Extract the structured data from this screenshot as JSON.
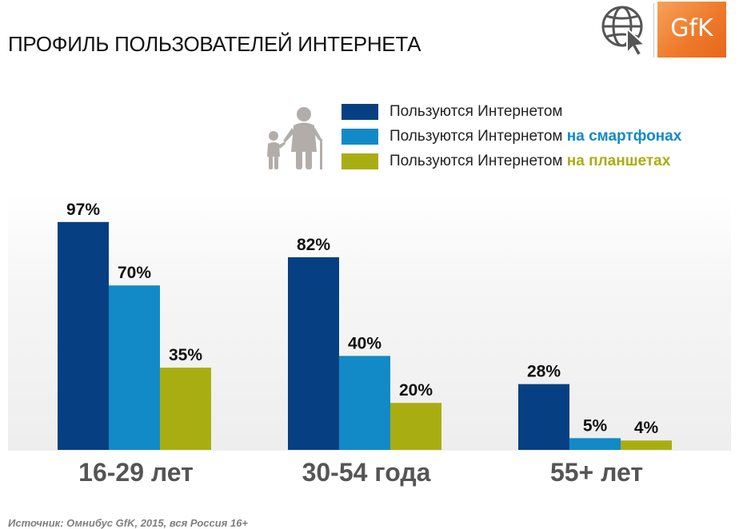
{
  "page": {
    "title": "ПРОФИЛЬ ПОЛЬЗОВАТЕЛЕЙ ИНТЕРНЕТА",
    "source": "Источник: Омнибус GfK, 2015, вся Россия 16+",
    "logo_text": "GfK",
    "icons": {
      "brand": "globe-cursor-icon",
      "people": "grandmother-child-icon"
    }
  },
  "legend": {
    "items": [
      {
        "text": "Пользуются Интернетом",
        "highlight": "",
        "color": "#063f82",
        "highlight_color": ""
      },
      {
        "text": "Пользуются Интернетом ",
        "highlight": "на смартфонах",
        "color": "#128ac8",
        "highlight_color": "#128ac8"
      },
      {
        "text": "Пользуются Интернетом ",
        "highlight": "на планшетах",
        "color": "#a8ae12",
        "highlight_color": "#a8ae12"
      }
    ]
  },
  "chart_data": {
    "type": "bar",
    "categories": [
      "16-29 лет",
      "30-54 года",
      "55+ лет"
    ],
    "series": [
      {
        "name": "Пользуются Интернетом",
        "values": [
          97,
          82,
          28
        ],
        "labels": [
          "97%",
          "82%",
          "28%"
        ],
        "color": "#063f82"
      },
      {
        "name": "Пользуются Интернетом на смартфонах",
        "values": [
          70,
          40,
          5
        ],
        "labels": [
          "70%",
          "40%",
          "5%"
        ],
        "color": "#128ac8"
      },
      {
        "name": "Пользуются Интернетом на планшетах",
        "values": [
          35,
          20,
          4
        ],
        "labels": [
          "35%",
          "20%",
          "4%"
        ],
        "color": "#a8ae12"
      }
    ],
    "ylim": [
      0,
      100
    ],
    "grid": false,
    "legend_position": "top-right"
  }
}
